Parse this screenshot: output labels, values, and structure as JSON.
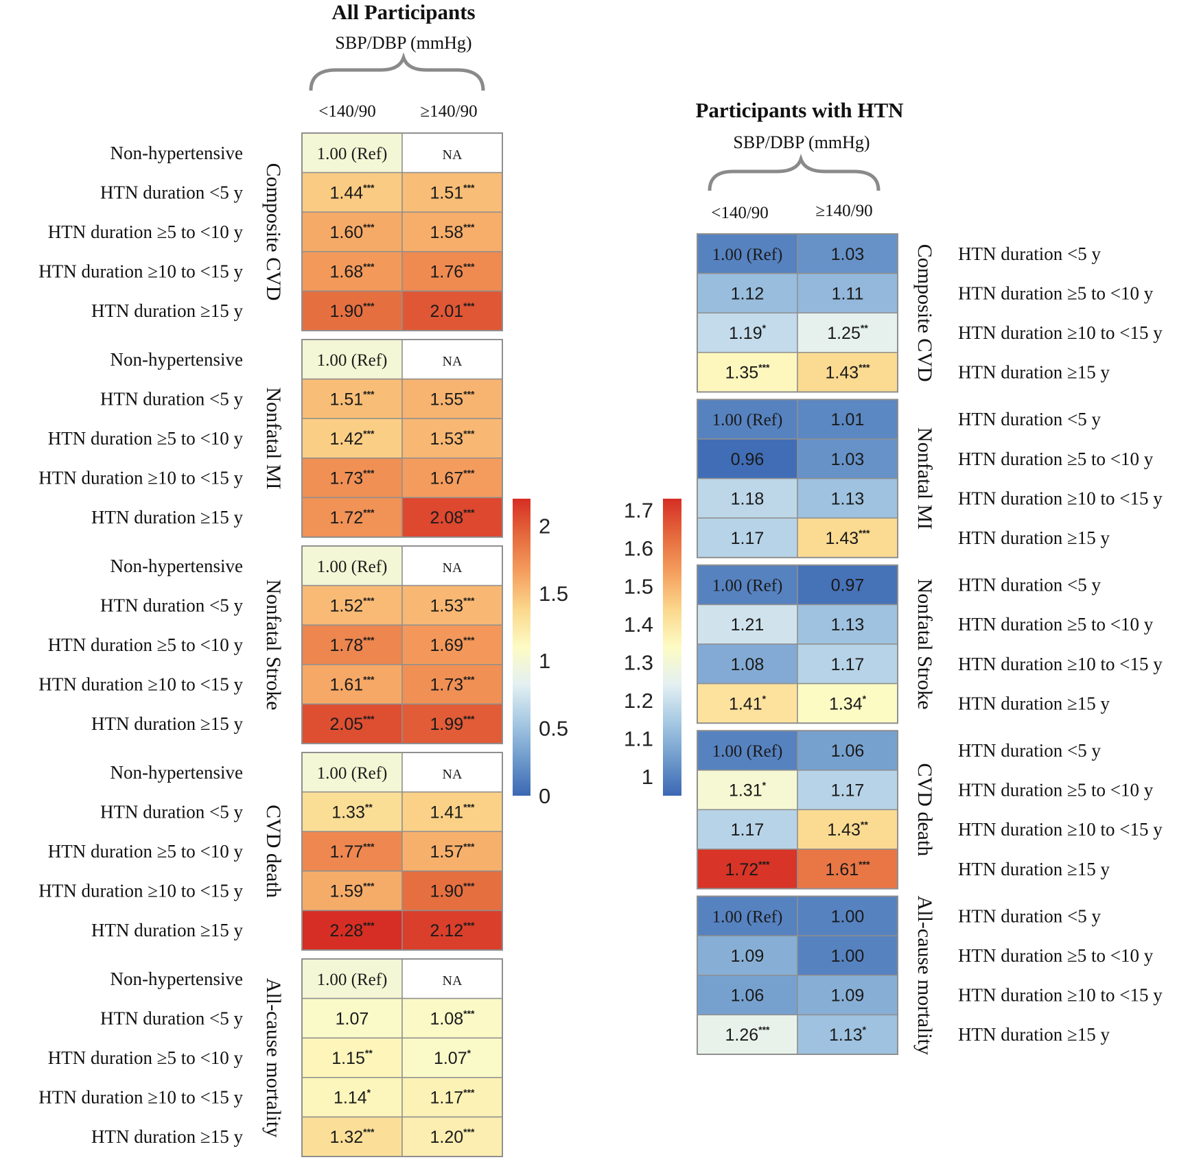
{
  "left": {
    "title": "All Participants",
    "subtitle": "SBP/DBP (mmHg)",
    "columns": [
      "<140/90",
      "≥140/90"
    ],
    "row_labels": [
      "Non-hypertensive",
      "HTN duration <5 y",
      "HTN duration ≥5 to <10 y",
      "HTN duration ≥10 to <15 y",
      "HTN duration ≥15 y"
    ],
    "colorbar": {
      "min": 0,
      "max": 2.2,
      "ticks": [
        "0",
        "0.5",
        "1",
        "1.5",
        "2"
      ],
      "tick_values": [
        0,
        0.5,
        1,
        1.5,
        2
      ]
    },
    "groups": [
      {
        "name": "Composite CVD",
        "cells": [
          [
            {
              "text": "1.00 (Ref)",
              "value": 1.0
            },
            {
              "text": "NA",
              "value": null
            }
          ],
          [
            {
              "text": "1.44",
              "sig": "***",
              "value": 1.44
            },
            {
              "text": "1.51",
              "sig": "***",
              "value": 1.51
            }
          ],
          [
            {
              "text": "1.60",
              "sig": "***",
              "value": 1.6
            },
            {
              "text": "1.58",
              "sig": "***",
              "value": 1.58
            }
          ],
          [
            {
              "text": "1.68",
              "sig": "***",
              "value": 1.68
            },
            {
              "text": "1.76",
              "sig": "***",
              "value": 1.76
            }
          ],
          [
            {
              "text": "1.90",
              "sig": "***",
              "value": 1.9
            },
            {
              "text": "2.01",
              "sig": "***",
              "value": 2.01
            }
          ]
        ]
      },
      {
        "name": "Nonfatal MI",
        "cells": [
          [
            {
              "text": "1.00 (Ref)",
              "value": 1.0
            },
            {
              "text": "NA",
              "value": null
            }
          ],
          [
            {
              "text": "1.51",
              "sig": "***",
              "value": 1.51
            },
            {
              "text": "1.55",
              "sig": "***",
              "value": 1.55
            }
          ],
          [
            {
              "text": "1.42",
              "sig": "***",
              "value": 1.42
            },
            {
              "text": "1.53",
              "sig": "***",
              "value": 1.53
            }
          ],
          [
            {
              "text": "1.73",
              "sig": "***",
              "value": 1.73
            },
            {
              "text": "1.67",
              "sig": "***",
              "value": 1.67
            }
          ],
          [
            {
              "text": "1.72",
              "sig": "***",
              "value": 1.72
            },
            {
              "text": "2.08",
              "sig": "***",
              "value": 2.08
            }
          ]
        ]
      },
      {
        "name": "Nonfatal Stroke",
        "cells": [
          [
            {
              "text": "1.00 (Ref)",
              "value": 1.0
            },
            {
              "text": "NA",
              "value": null
            }
          ],
          [
            {
              "text": "1.52",
              "sig": "***",
              "value": 1.52
            },
            {
              "text": "1.53",
              "sig": "***",
              "value": 1.53
            }
          ],
          [
            {
              "text": "1.78",
              "sig": "***",
              "value": 1.78
            },
            {
              "text": "1.69",
              "sig": "***",
              "value": 1.69
            }
          ],
          [
            {
              "text": "1.61",
              "sig": "***",
              "value": 1.61
            },
            {
              "text": "1.73",
              "sig": "***",
              "value": 1.73
            }
          ],
          [
            {
              "text": "2.05",
              "sig": "***",
              "value": 2.05
            },
            {
              "text": "1.99",
              "sig": "***",
              "value": 1.99
            }
          ]
        ]
      },
      {
        "name": "CVD death",
        "cells": [
          [
            {
              "text": "1.00 (Ref)",
              "value": 1.0
            },
            {
              "text": "NA",
              "value": null
            }
          ],
          [
            {
              "text": "1.33",
              "sig": "**",
              "value": 1.33
            },
            {
              "text": "1.41",
              "sig": "***",
              "value": 1.41
            }
          ],
          [
            {
              "text": "1.77",
              "sig": "***",
              "value": 1.77
            },
            {
              "text": "1.57",
              "sig": "***",
              "value": 1.57
            }
          ],
          [
            {
              "text": "1.59",
              "sig": "***",
              "value": 1.59
            },
            {
              "text": "1.90",
              "sig": "***",
              "value": 1.9
            }
          ],
          [
            {
              "text": "2.28",
              "sig": "***",
              "value": 2.28
            },
            {
              "text": "2.12",
              "sig": "***",
              "value": 2.12
            }
          ]
        ]
      },
      {
        "name": "All-cause mortality",
        "cells": [
          [
            {
              "text": "1.00 (Ref)",
              "value": 1.0
            },
            {
              "text": "NA",
              "value": null
            }
          ],
          [
            {
              "text": "1.07",
              "value": 1.07
            },
            {
              "text": "1.08",
              "sig": "***",
              "value": 1.08
            }
          ],
          [
            {
              "text": "1.15",
              "sig": "**",
              "value": 1.15
            },
            {
              "text": "1.07",
              "sig": "*",
              "value": 1.07
            }
          ],
          [
            {
              "text": "1.14",
              "sig": "*",
              "value": 1.14
            },
            {
              "text": "1.17",
              "sig": "***",
              "value": 1.17
            }
          ],
          [
            {
              "text": "1.32",
              "sig": "***",
              "value": 1.32
            },
            {
              "text": "1.20",
              "sig": "***",
              "value": 1.2
            }
          ]
        ]
      }
    ]
  },
  "right": {
    "title": "Participants with HTN",
    "subtitle": "SBP/DBP (mmHg)",
    "columns": [
      "<140/90",
      "≥140/90"
    ],
    "row_labels": [
      "HTN duration <5 y",
      "HTN duration ≥5 to <10 y",
      "HTN duration ≥10 to <15 y",
      "HTN duration ≥15 y"
    ],
    "colorbar": {
      "min": 0.95,
      "max": 1.73,
      "ticks": [
        "1",
        "1.1",
        "1.2",
        "1.3",
        "1.4",
        "1.5",
        "1.6",
        "1.7"
      ],
      "tick_values": [
        1,
        1.1,
        1.2,
        1.3,
        1.4,
        1.5,
        1.6,
        1.7
      ]
    },
    "groups": [
      {
        "name": "Composite CVD",
        "cells": [
          [
            {
              "text": "1.00 (Ref)",
              "value": 1.0
            },
            {
              "text": "1.03",
              "value": 1.03
            }
          ],
          [
            {
              "text": "1.12",
              "value": 1.12
            },
            {
              "text": "1.11",
              "value": 1.11
            }
          ],
          [
            {
              "text": "1.19",
              "sig": "*",
              "value": 1.19
            },
            {
              "text": "1.25",
              "sig": "**",
              "value": 1.25
            }
          ],
          [
            {
              "text": "1.35",
              "sig": "***",
              "value": 1.35
            },
            {
              "text": "1.43",
              "sig": "***",
              "value": 1.43
            }
          ]
        ]
      },
      {
        "name": "Nonfatal MI",
        "cells": [
          [
            {
              "text": "1.00 (Ref)",
              "value": 1.0
            },
            {
              "text": "1.01",
              "value": 1.01
            }
          ],
          [
            {
              "text": "0.96",
              "value": 0.96
            },
            {
              "text": "1.03",
              "value": 1.03
            }
          ],
          [
            {
              "text": "1.18",
              "value": 1.18
            },
            {
              "text": "1.13",
              "value": 1.13
            }
          ],
          [
            {
              "text": "1.17",
              "value": 1.17
            },
            {
              "text": "1.43",
              "sig": "***",
              "value": 1.43
            }
          ]
        ]
      },
      {
        "name": "Nonfatal Stroke",
        "cells": [
          [
            {
              "text": "1.00 (Ref)",
              "value": 1.0
            },
            {
              "text": "0.97",
              "value": 0.97
            }
          ],
          [
            {
              "text": "1.21",
              "value": 1.21
            },
            {
              "text": "1.13",
              "value": 1.13
            }
          ],
          [
            {
              "text": "1.08",
              "value": 1.08
            },
            {
              "text": "1.17",
              "value": 1.17
            }
          ],
          [
            {
              "text": "1.41",
              "sig": "*",
              "value": 1.41
            },
            {
              "text": "1.34",
              "sig": "*",
              "value": 1.34
            }
          ]
        ]
      },
      {
        "name": "CVD death",
        "cells": [
          [
            {
              "text": "1.00 (Ref)",
              "value": 1.0
            },
            {
              "text": "1.06",
              "value": 1.06
            }
          ],
          [
            {
              "text": "1.31",
              "sig": "*",
              "value": 1.31
            },
            {
              "text": "1.17",
              "value": 1.17
            }
          ],
          [
            {
              "text": "1.17",
              "value": 1.17
            },
            {
              "text": "1.43",
              "sig": "**",
              "value": 1.43
            }
          ],
          [
            {
              "text": "1.72",
              "sig": "***",
              "value": 1.72
            },
            {
              "text": "1.61",
              "sig": "***",
              "value": 1.61
            }
          ]
        ]
      },
      {
        "name": "All-cause mortality",
        "cells": [
          [
            {
              "text": "1.00 (Ref)",
              "value": 1.0
            },
            {
              "text": "1.00",
              "value": 1.0
            }
          ],
          [
            {
              "text": "1.09",
              "value": 1.09
            },
            {
              "text": "1.00",
              "value": 1.0
            }
          ],
          [
            {
              "text": "1.06",
              "value": 1.06
            },
            {
              "text": "1.09",
              "value": 1.09
            }
          ],
          [
            {
              "text": "1.26",
              "sig": "***",
              "value": 1.26
            },
            {
              "text": "1.13",
              "sig": "*",
              "value": 1.13
            }
          ]
        ]
      }
    ]
  },
  "colors": {
    "ramp": [
      "#3b68b3",
      "#6f9bcc",
      "#a7c9e3",
      "#e4f0f2",
      "#fdfbc4",
      "#fbd88d",
      "#f5a05f",
      "#e56a3d",
      "#d62e24"
    ],
    "na_cell": "#ffffff",
    "border": "#8f8f8f",
    "brace": "#8a8a8a"
  },
  "chart_data": [
    {
      "type": "heatmap",
      "title": "All Participants",
      "xlabel": "SBP/DBP (mmHg)",
      "x": [
        "<140/90",
        "≥140/90"
      ],
      "series": [
        {
          "name": "Composite CVD",
          "rows": [
            "Non-hypertensive",
            "HTN duration <5 y",
            "HTN duration ≥5 to <10 y",
            "HTN duration ≥10 to <15 y",
            "HTN duration ≥15 y"
          ],
          "values": [
            [
              1.0,
              null
            ],
            [
              1.44,
              1.51
            ],
            [
              1.6,
              1.58
            ],
            [
              1.68,
              1.76
            ],
            [
              1.9,
              2.01
            ]
          ]
        },
        {
          "name": "Nonfatal MI",
          "rows": [
            "Non-hypertensive",
            "HTN duration <5 y",
            "HTN duration ≥5 to <10 y",
            "HTN duration ≥10 to <15 y",
            "HTN duration ≥15 y"
          ],
          "values": [
            [
              1.0,
              null
            ],
            [
              1.51,
              1.55
            ],
            [
              1.42,
              1.53
            ],
            [
              1.73,
              1.67
            ],
            [
              1.72,
              2.08
            ]
          ]
        },
        {
          "name": "Nonfatal Stroke",
          "rows": [
            "Non-hypertensive",
            "HTN duration <5 y",
            "HTN duration ≥5 to <10 y",
            "HTN duration ≥10 to <15 y",
            "HTN duration ≥15 y"
          ],
          "values": [
            [
              1.0,
              null
            ],
            [
              1.52,
              1.53
            ],
            [
              1.78,
              1.69
            ],
            [
              1.61,
              1.73
            ],
            [
              2.05,
              1.99
            ]
          ]
        },
        {
          "name": "CVD death",
          "rows": [
            "Non-hypertensive",
            "HTN duration <5 y",
            "HTN duration ≥5 to <10 y",
            "HTN duration ≥10 to <15 y",
            "HTN duration ≥15 y"
          ],
          "values": [
            [
              1.0,
              null
            ],
            [
              1.33,
              1.41
            ],
            [
              1.77,
              1.57
            ],
            [
              1.59,
              1.9
            ],
            [
              2.28,
              2.12
            ]
          ]
        },
        {
          "name": "All-cause mortality",
          "rows": [
            "Non-hypertensive",
            "HTN duration <5 y",
            "HTN duration ≥5 to <10 y",
            "HTN duration ≥10 to <15 y",
            "HTN duration ≥15 y"
          ],
          "values": [
            [
              1.0,
              null
            ],
            [
              1.07,
              1.08
            ],
            [
              1.15,
              1.07
            ],
            [
              1.14,
              1.17
            ],
            [
              1.32,
              1.2
            ]
          ]
        }
      ],
      "colorbar_range": [
        0,
        2.2
      ]
    },
    {
      "type": "heatmap",
      "title": "Participants with HTN",
      "xlabel": "SBP/DBP (mmHg)",
      "x": [
        "<140/90",
        "≥140/90"
      ],
      "series": [
        {
          "name": "Composite CVD",
          "rows": [
            "HTN duration <5 y",
            "HTN duration ≥5 to <10 y",
            "HTN duration ≥10 to <15 y",
            "HTN duration ≥15 y"
          ],
          "values": [
            [
              1.0,
              1.03
            ],
            [
              1.12,
              1.11
            ],
            [
              1.19,
              1.25
            ],
            [
              1.35,
              1.43
            ]
          ]
        },
        {
          "name": "Nonfatal MI",
          "rows": [
            "HTN duration <5 y",
            "HTN duration ≥5 to <10 y",
            "HTN duration ≥10 to <15 y",
            "HTN duration ≥15 y"
          ],
          "values": [
            [
              1.0,
              1.01
            ],
            [
              0.96,
              1.03
            ],
            [
              1.18,
              1.13
            ],
            [
              1.17,
              1.43
            ]
          ]
        },
        {
          "name": "Nonfatal Stroke",
          "rows": [
            "HTN duration <5 y",
            "HTN duration ≥5 to <10 y",
            "HTN duration ≥10 to <15 y",
            "HTN duration ≥15 y"
          ],
          "values": [
            [
              1.0,
              0.97
            ],
            [
              1.21,
              1.13
            ],
            [
              1.08,
              1.17
            ],
            [
              1.41,
              1.34
            ]
          ]
        },
        {
          "name": "CVD death",
          "rows": [
            "HTN duration <5 y",
            "HTN duration ≥5 to <10 y",
            "HTN duration ≥10 to <15 y",
            "HTN duration ≥15 y"
          ],
          "values": [
            [
              1.0,
              1.06
            ],
            [
              1.31,
              1.17
            ],
            [
              1.17,
              1.43
            ],
            [
              1.72,
              1.61
            ]
          ]
        },
        {
          "name": "All-cause mortality",
          "rows": [
            "HTN duration <5 y",
            "HTN duration ≥5 to <10 y",
            "HTN duration ≥10 to <15 y",
            "HTN duration ≥15 y"
          ],
          "values": [
            [
              1.0,
              1.0
            ],
            [
              1.09,
              1.0
            ],
            [
              1.06,
              1.09
            ],
            [
              1.26,
              1.13
            ]
          ]
        }
      ],
      "colorbar_range": [
        0.95,
        1.73
      ]
    }
  ]
}
